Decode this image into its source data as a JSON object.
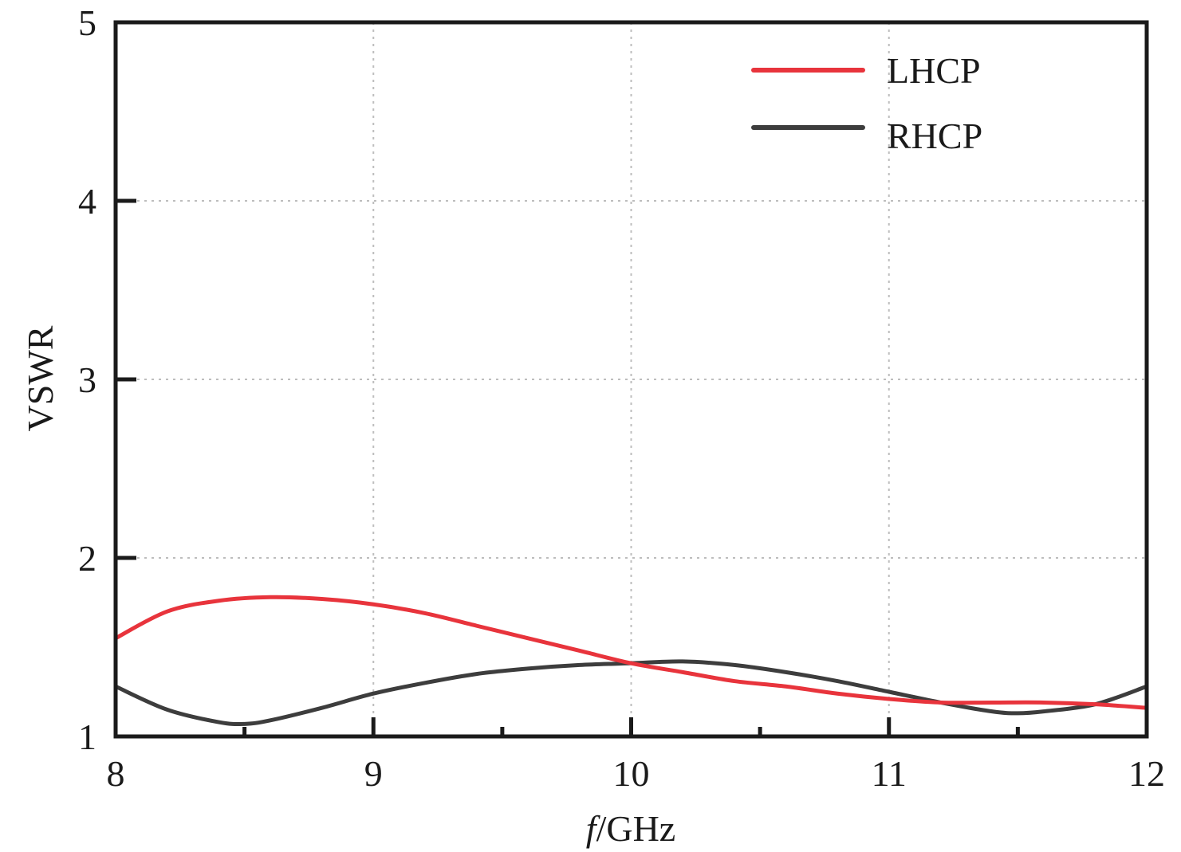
{
  "chart_data": {
    "type": "line",
    "title": "",
    "xlabel_italic": "f",
    "xlabel_rest": "/GHz",
    "ylabel": "VSWR",
    "xlim": [
      8,
      12
    ],
    "ylim": [
      1,
      5
    ],
    "x_ticks": [
      8,
      9,
      10,
      11,
      12
    ],
    "x_minor_ticks": [
      8.5,
      9.5,
      10.5,
      11.5
    ],
    "y_ticks": [
      1,
      2,
      3,
      4,
      5
    ],
    "grid": true,
    "legend_position": "top-right",
    "series": [
      {
        "name": "LHCP",
        "color": "#e8343c",
        "x": [
          8.0,
          8.2,
          8.4,
          8.6,
          8.8,
          9.0,
          9.2,
          9.4,
          9.6,
          9.8,
          10.0,
          10.2,
          10.4,
          10.6,
          10.8,
          11.0,
          11.2,
          11.4,
          11.6,
          11.8,
          12.0
        ],
        "y": [
          1.55,
          1.7,
          1.76,
          1.78,
          1.77,
          1.74,
          1.69,
          1.62,
          1.55,
          1.48,
          1.41,
          1.36,
          1.31,
          1.28,
          1.24,
          1.21,
          1.19,
          1.19,
          1.19,
          1.18,
          1.16
        ]
      },
      {
        "name": "RHCP",
        "color": "#3d3d3d",
        "x": [
          8.0,
          8.2,
          8.4,
          8.5,
          8.6,
          8.8,
          9.0,
          9.2,
          9.4,
          9.6,
          9.8,
          10.0,
          10.2,
          10.4,
          10.6,
          10.8,
          11.0,
          11.2,
          11.4,
          11.5,
          11.6,
          11.8,
          12.0
        ],
        "y": [
          1.28,
          1.15,
          1.08,
          1.07,
          1.09,
          1.16,
          1.24,
          1.3,
          1.35,
          1.38,
          1.4,
          1.41,
          1.42,
          1.4,
          1.36,
          1.31,
          1.25,
          1.19,
          1.14,
          1.13,
          1.14,
          1.18,
          1.28
        ]
      }
    ]
  }
}
